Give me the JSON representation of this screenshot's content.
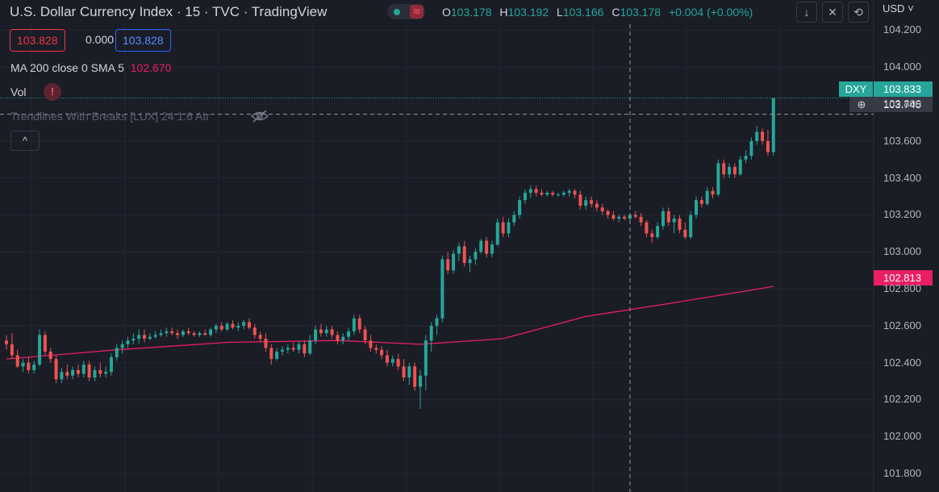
{
  "header": {
    "title": "U.S. Dollar Currency Index · 15 · TVC · TradingView",
    "ohlc": [
      {
        "key": "O",
        "value": "103.178"
      },
      {
        "key": "H",
        "value": "103.192"
      },
      {
        "key": "L",
        "value": "103.166"
      },
      {
        "key": "C",
        "value": "103.178"
      }
    ],
    "change": "+0.004 (+0.00%)",
    "currency": "USD"
  },
  "trade": {
    "sell": "103.828",
    "spread": "0.000",
    "buy": "103.828"
  },
  "indicators": {
    "ma_label": "MA 200 close 0 SMA 5",
    "ma_value": "102.670",
    "vol_label": "Vol",
    "vol_warning": "!",
    "trendlines_label": "Trendlines With Breaks [LUX] 24 1.6 Atr"
  },
  "price_scale": {
    "ticks": [
      "104.200",
      "104.000",
      "103.800",
      "103.600",
      "103.400",
      "103.200",
      "103.000",
      "102.800",
      "102.600",
      "102.400",
      "102.200",
      "102.000",
      "101.800"
    ]
  },
  "labels": {
    "symbol": "DXY",
    "last_price": "103.833",
    "crosshair_price": "103.745",
    "ma_price": "102.813"
  },
  "colors": {
    "background": "#1a1d26",
    "up": "#26a69a",
    "down": "#ef5350",
    "ma": "#e91e63",
    "grid": "#242732",
    "text": "#d1d4dc"
  },
  "chart_data": {
    "type": "line",
    "title": "U.S. Dollar Currency Index · 15 · TVC",
    "candles": [
      {
        "x": 0,
        "o": 102.52,
        "h": 102.55,
        "l": 102.47,
        "c": 102.5
      },
      {
        "x": 1,
        "o": 102.5,
        "h": 102.56,
        "l": 102.42,
        "c": 102.44
      },
      {
        "x": 2,
        "o": 102.44,
        "h": 102.47,
        "l": 102.37,
        "c": 102.38
      },
      {
        "x": 3,
        "o": 102.38,
        "h": 102.42,
        "l": 102.35,
        "c": 102.4
      },
      {
        "x": 4,
        "o": 102.4,
        "h": 102.43,
        "l": 102.34,
        "c": 102.36
      },
      {
        "x": 5,
        "o": 102.36,
        "h": 102.41,
        "l": 102.34,
        "c": 102.39
      },
      {
        "x": 6,
        "o": 102.39,
        "h": 102.58,
        "l": 102.38,
        "c": 102.55
      },
      {
        "x": 7,
        "o": 102.55,
        "h": 102.57,
        "l": 102.44,
        "c": 102.46
      },
      {
        "x": 8,
        "o": 102.46,
        "h": 102.48,
        "l": 102.4,
        "c": 102.42
      },
      {
        "x": 9,
        "o": 102.42,
        "h": 102.44,
        "l": 102.29,
        "c": 102.31
      },
      {
        "x": 10,
        "o": 102.31,
        "h": 102.37,
        "l": 102.29,
        "c": 102.35
      },
      {
        "x": 11,
        "o": 102.35,
        "h": 102.39,
        "l": 102.31,
        "c": 102.33
      },
      {
        "x": 12,
        "o": 102.33,
        "h": 102.38,
        "l": 102.31,
        "c": 102.36
      },
      {
        "x": 13,
        "o": 102.36,
        "h": 102.39,
        "l": 102.32,
        "c": 102.34
      },
      {
        "x": 14,
        "o": 102.34,
        "h": 102.41,
        "l": 102.32,
        "c": 102.39
      },
      {
        "x": 15,
        "o": 102.39,
        "h": 102.41,
        "l": 102.3,
        "c": 102.32
      },
      {
        "x": 16,
        "o": 102.32,
        "h": 102.38,
        "l": 102.3,
        "c": 102.36
      },
      {
        "x": 17,
        "o": 102.36,
        "h": 102.4,
        "l": 102.32,
        "c": 102.34
      },
      {
        "x": 18,
        "o": 102.34,
        "h": 102.38,
        "l": 102.32,
        "c": 102.35
      },
      {
        "x": 19,
        "o": 102.35,
        "h": 102.45,
        "l": 102.33,
        "c": 102.43
      },
      {
        "x": 20,
        "o": 102.43,
        "h": 102.5,
        "l": 102.41,
        "c": 102.48
      },
      {
        "x": 21,
        "o": 102.48,
        "h": 102.52,
        "l": 102.45,
        "c": 102.5
      },
      {
        "x": 22,
        "o": 102.5,
        "h": 102.54,
        "l": 102.48,
        "c": 102.52
      },
      {
        "x": 23,
        "o": 102.52,
        "h": 102.56,
        "l": 102.5,
        "c": 102.53
      },
      {
        "x": 24,
        "o": 102.53,
        "h": 102.58,
        "l": 102.5,
        "c": 102.55
      },
      {
        "x": 25,
        "o": 102.55,
        "h": 102.58,
        "l": 102.51,
        "c": 102.53
      },
      {
        "x": 26,
        "o": 102.53,
        "h": 102.56,
        "l": 102.52,
        "c": 102.54
      },
      {
        "x": 27,
        "o": 102.54,
        "h": 102.57,
        "l": 102.53,
        "c": 102.55
      },
      {
        "x": 28,
        "o": 102.55,
        "h": 102.58,
        "l": 102.54,
        "c": 102.56
      },
      {
        "x": 29,
        "o": 102.56,
        "h": 102.59,
        "l": 102.54,
        "c": 102.57
      },
      {
        "x": 30,
        "o": 102.57,
        "h": 102.59,
        "l": 102.55,
        "c": 102.56
      },
      {
        "x": 31,
        "o": 102.56,
        "h": 102.58,
        "l": 102.53,
        "c": 102.55
      },
      {
        "x": 32,
        "o": 102.55,
        "h": 102.58,
        "l": 102.54,
        "c": 102.57
      },
      {
        "x": 33,
        "o": 102.57,
        "h": 102.59,
        "l": 102.55,
        "c": 102.56
      },
      {
        "x": 34,
        "o": 102.56,
        "h": 102.57,
        "l": 102.54,
        "c": 102.55
      },
      {
        "x": 35,
        "o": 102.55,
        "h": 102.57,
        "l": 102.54,
        "c": 102.56
      },
      {
        "x": 36,
        "o": 102.56,
        "h": 102.58,
        "l": 102.55,
        "c": 102.55
      },
      {
        "x": 37,
        "o": 102.55,
        "h": 102.59,
        "l": 102.54,
        "c": 102.58
      },
      {
        "x": 38,
        "o": 102.58,
        "h": 102.61,
        "l": 102.56,
        "c": 102.6
      },
      {
        "x": 39,
        "o": 102.6,
        "h": 102.62,
        "l": 102.57,
        "c": 102.58
      },
      {
        "x": 40,
        "o": 102.58,
        "h": 102.62,
        "l": 102.57,
        "c": 102.61
      },
      {
        "x": 41,
        "o": 102.61,
        "h": 102.63,
        "l": 102.58,
        "c": 102.59
      },
      {
        "x": 42,
        "o": 102.59,
        "h": 102.62,
        "l": 102.57,
        "c": 102.6
      },
      {
        "x": 43,
        "o": 102.6,
        "h": 102.63,
        "l": 102.58,
        "c": 102.62
      },
      {
        "x": 44,
        "o": 102.62,
        "h": 102.64,
        "l": 102.58,
        "c": 102.59
      },
      {
        "x": 45,
        "o": 102.59,
        "h": 102.61,
        "l": 102.53,
        "c": 102.55
      },
      {
        "x": 46,
        "o": 102.55,
        "h": 102.57,
        "l": 102.51,
        "c": 102.53
      },
      {
        "x": 47,
        "o": 102.53,
        "h": 102.56,
        "l": 102.46,
        "c": 102.48
      },
      {
        "x": 48,
        "o": 102.48,
        "h": 102.5,
        "l": 102.39,
        "c": 102.42
      },
      {
        "x": 49,
        "o": 102.42,
        "h": 102.48,
        "l": 102.41,
        "c": 102.46
      },
      {
        "x": 50,
        "o": 102.46,
        "h": 102.49,
        "l": 102.44,
        "c": 102.47
      },
      {
        "x": 51,
        "o": 102.47,
        "h": 102.5,
        "l": 102.45,
        "c": 102.48
      },
      {
        "x": 52,
        "o": 102.48,
        "h": 102.51,
        "l": 102.46,
        "c": 102.47
      },
      {
        "x": 53,
        "o": 102.47,
        "h": 102.52,
        "l": 102.45,
        "c": 102.5
      },
      {
        "x": 54,
        "o": 102.5,
        "h": 102.52,
        "l": 102.43,
        "c": 102.45
      },
      {
        "x": 55,
        "o": 102.45,
        "h": 102.55,
        "l": 102.44,
        "c": 102.52
      },
      {
        "x": 56,
        "o": 102.52,
        "h": 102.6,
        "l": 102.5,
        "c": 102.58
      },
      {
        "x": 57,
        "o": 102.58,
        "h": 102.61,
        "l": 102.54,
        "c": 102.56
      },
      {
        "x": 58,
        "o": 102.56,
        "h": 102.6,
        "l": 102.54,
        "c": 102.58
      },
      {
        "x": 59,
        "o": 102.58,
        "h": 102.6,
        "l": 102.53,
        "c": 102.55
      },
      {
        "x": 60,
        "o": 102.55,
        "h": 102.57,
        "l": 102.5,
        "c": 102.52
      },
      {
        "x": 61,
        "o": 102.52,
        "h": 102.56,
        "l": 102.5,
        "c": 102.54
      },
      {
        "x": 62,
        "o": 102.54,
        "h": 102.59,
        "l": 102.52,
        "c": 102.57
      },
      {
        "x": 63,
        "o": 102.57,
        "h": 102.66,
        "l": 102.55,
        "c": 102.64
      },
      {
        "x": 64,
        "o": 102.64,
        "h": 102.66,
        "l": 102.56,
        "c": 102.58
      },
      {
        "x": 65,
        "o": 102.58,
        "h": 102.6,
        "l": 102.5,
        "c": 102.52
      },
      {
        "x": 66,
        "o": 102.52,
        "h": 102.55,
        "l": 102.46,
        "c": 102.48
      },
      {
        "x": 67,
        "o": 102.48,
        "h": 102.5,
        "l": 102.45,
        "c": 102.47
      },
      {
        "x": 68,
        "o": 102.47,
        "h": 102.49,
        "l": 102.42,
        "c": 102.44
      },
      {
        "x": 69,
        "o": 102.44,
        "h": 102.47,
        "l": 102.38,
        "c": 102.4
      },
      {
        "x": 70,
        "o": 102.4,
        "h": 102.44,
        "l": 102.38,
        "c": 102.42
      },
      {
        "x": 71,
        "o": 102.42,
        "h": 102.45,
        "l": 102.36,
        "c": 102.38
      },
      {
        "x": 72,
        "o": 102.38,
        "h": 102.42,
        "l": 102.3,
        "c": 102.32
      },
      {
        "x": 73,
        "o": 102.32,
        "h": 102.4,
        "l": 102.28,
        "c": 102.38
      },
      {
        "x": 74,
        "o": 102.38,
        "h": 102.4,
        "l": 102.25,
        "c": 102.27
      },
      {
        "x": 75,
        "o": 102.27,
        "h": 102.36,
        "l": 102.15,
        "c": 102.33
      },
      {
        "x": 76,
        "o": 102.33,
        "h": 102.55,
        "l": 102.25,
        "c": 102.52
      },
      {
        "x": 77,
        "o": 102.52,
        "h": 102.62,
        "l": 102.46,
        "c": 102.6
      },
      {
        "x": 78,
        "o": 102.6,
        "h": 102.66,
        "l": 102.55,
        "c": 102.64
      },
      {
        "x": 79,
        "o": 102.64,
        "h": 102.98,
        "l": 102.62,
        "c": 102.96
      },
      {
        "x": 80,
        "o": 102.96,
        "h": 103.0,
        "l": 102.88,
        "c": 102.9
      },
      {
        "x": 81,
        "o": 102.9,
        "h": 103.01,
        "l": 102.88,
        "c": 102.99
      },
      {
        "x": 82,
        "o": 102.99,
        "h": 103.05,
        "l": 102.95,
        "c": 103.03
      },
      {
        "x": 83,
        "o": 103.03,
        "h": 103.06,
        "l": 102.92,
        "c": 102.94
      },
      {
        "x": 84,
        "o": 102.94,
        "h": 102.98,
        "l": 102.89,
        "c": 102.96
      },
      {
        "x": 85,
        "o": 102.96,
        "h": 103.02,
        "l": 102.93,
        "c": 103.0
      },
      {
        "x": 86,
        "o": 103.0,
        "h": 103.07,
        "l": 102.99,
        "c": 103.06
      },
      {
        "x": 87,
        "o": 103.06,
        "h": 103.08,
        "l": 102.97,
        "c": 102.99
      },
      {
        "x": 88,
        "o": 102.99,
        "h": 103.06,
        "l": 102.97,
        "c": 103.04
      },
      {
        "x": 89,
        "o": 103.04,
        "h": 103.18,
        "l": 103.03,
        "c": 103.16
      },
      {
        "x": 90,
        "o": 103.16,
        "h": 103.19,
        "l": 103.08,
        "c": 103.1
      },
      {
        "x": 91,
        "o": 103.1,
        "h": 103.18,
        "l": 103.08,
        "c": 103.16
      },
      {
        "x": 92,
        "o": 103.16,
        "h": 103.22,
        "l": 103.14,
        "c": 103.2
      },
      {
        "x": 93,
        "o": 103.2,
        "h": 103.3,
        "l": 103.18,
        "c": 103.28
      },
      {
        "x": 94,
        "o": 103.28,
        "h": 103.34,
        "l": 103.26,
        "c": 103.32
      },
      {
        "x": 95,
        "o": 103.32,
        "h": 103.36,
        "l": 103.29,
        "c": 103.34
      },
      {
        "x": 96,
        "o": 103.34,
        "h": 103.36,
        "l": 103.3,
        "c": 103.32
      },
      {
        "x": 97,
        "o": 103.32,
        "h": 103.34,
        "l": 103.3,
        "c": 103.31
      },
      {
        "x": 98,
        "o": 103.31,
        "h": 103.33,
        "l": 103.3,
        "c": 103.32
      },
      {
        "x": 99,
        "o": 103.32,
        "h": 103.33,
        "l": 103.3,
        "c": 103.31
      },
      {
        "x": 100,
        "o": 103.31,
        "h": 103.32,
        "l": 103.3,
        "c": 103.31
      },
      {
        "x": 101,
        "o": 103.31,
        "h": 103.33,
        "l": 103.3,
        "c": 103.32
      },
      {
        "x": 102,
        "o": 103.32,
        "h": 103.34,
        "l": 103.3,
        "c": 103.33
      },
      {
        "x": 103,
        "o": 103.33,
        "h": 103.34,
        "l": 103.29,
        "c": 103.31
      },
      {
        "x": 104,
        "o": 103.31,
        "h": 103.33,
        "l": 103.23,
        "c": 103.25
      },
      {
        "x": 105,
        "o": 103.25,
        "h": 103.3,
        "l": 103.23,
        "c": 103.28
      },
      {
        "x": 106,
        "o": 103.28,
        "h": 103.3,
        "l": 103.24,
        "c": 103.26
      },
      {
        "x": 107,
        "o": 103.26,
        "h": 103.28,
        "l": 103.22,
        "c": 103.24
      },
      {
        "x": 108,
        "o": 103.24,
        "h": 103.26,
        "l": 103.2,
        "c": 103.22
      },
      {
        "x": 109,
        "o": 103.22,
        "h": 103.23,
        "l": 103.18,
        "c": 103.2
      },
      {
        "x": 110,
        "o": 103.2,
        "h": 103.22,
        "l": 103.17,
        "c": 103.18
      },
      {
        "x": 111,
        "o": 103.18,
        "h": 103.2,
        "l": 103.16,
        "c": 103.19
      },
      {
        "x": 112,
        "o": 103.19,
        "h": 103.2,
        "l": 103.17,
        "c": 103.18
      },
      {
        "x": 113,
        "o": 103.18,
        "h": 103.21,
        "l": 103.17,
        "c": 103.2
      },
      {
        "x": 114,
        "o": 103.2,
        "h": 103.22,
        "l": 103.18,
        "c": 103.19
      },
      {
        "x": 115,
        "o": 103.19,
        "h": 103.21,
        "l": 103.14,
        "c": 103.16
      },
      {
        "x": 116,
        "o": 103.16,
        "h": 103.17,
        "l": 103.08,
        "c": 103.1
      },
      {
        "x": 117,
        "o": 103.1,
        "h": 103.12,
        "l": 103.05,
        "c": 103.08
      },
      {
        "x": 118,
        "o": 103.08,
        "h": 103.16,
        "l": 103.07,
        "c": 103.14
      },
      {
        "x": 119,
        "o": 103.14,
        "h": 103.24,
        "l": 103.12,
        "c": 103.22
      },
      {
        "x": 120,
        "o": 103.22,
        "h": 103.24,
        "l": 103.14,
        "c": 103.16
      },
      {
        "x": 121,
        "o": 103.16,
        "h": 103.2,
        "l": 103.1,
        "c": 103.18
      },
      {
        "x": 122,
        "o": 103.18,
        "h": 103.2,
        "l": 103.1,
        "c": 103.12
      },
      {
        "x": 123,
        "o": 103.12,
        "h": 103.16,
        "l": 103.07,
        "c": 103.08
      },
      {
        "x": 124,
        "o": 103.08,
        "h": 103.22,
        "l": 103.07,
        "c": 103.2
      },
      {
        "x": 125,
        "o": 103.2,
        "h": 103.3,
        "l": 103.18,
        "c": 103.28
      },
      {
        "x": 126,
        "o": 103.28,
        "h": 103.3,
        "l": 103.24,
        "c": 103.26
      },
      {
        "x": 127,
        "o": 103.26,
        "h": 103.35,
        "l": 103.25,
        "c": 103.33
      },
      {
        "x": 128,
        "o": 103.33,
        "h": 103.35,
        "l": 103.29,
        "c": 103.31
      },
      {
        "x": 129,
        "o": 103.31,
        "h": 103.5,
        "l": 103.3,
        "c": 103.48
      },
      {
        "x": 130,
        "o": 103.48,
        "h": 103.5,
        "l": 103.4,
        "c": 103.42
      },
      {
        "x": 131,
        "o": 103.42,
        "h": 103.48,
        "l": 103.4,
        "c": 103.46
      },
      {
        "x": 132,
        "o": 103.46,
        "h": 103.48,
        "l": 103.4,
        "c": 103.42
      },
      {
        "x": 133,
        "o": 103.42,
        "h": 103.52,
        "l": 103.41,
        "c": 103.5
      },
      {
        "x": 134,
        "o": 103.5,
        "h": 103.55,
        "l": 103.48,
        "c": 103.52
      },
      {
        "x": 135,
        "o": 103.52,
        "h": 103.62,
        "l": 103.5,
        "c": 103.6
      },
      {
        "x": 136,
        "o": 103.6,
        "h": 103.68,
        "l": 103.58,
        "c": 103.65
      },
      {
        "x": 137,
        "o": 103.65,
        "h": 103.67,
        "l": 103.58,
        "c": 103.6
      },
      {
        "x": 138,
        "o": 103.6,
        "h": 103.66,
        "l": 103.52,
        "c": 103.54
      },
      {
        "x": 139,
        "o": 103.54,
        "h": 103.833,
        "l": 103.52,
        "c": 103.833
      }
    ],
    "ma": [
      {
        "x": 0,
        "y": 102.42
      },
      {
        "x": 20,
        "y": 102.47
      },
      {
        "x": 40,
        "y": 102.51
      },
      {
        "x": 60,
        "y": 102.52
      },
      {
        "x": 75,
        "y": 102.5
      },
      {
        "x": 90,
        "y": 102.53
      },
      {
        "x": 105,
        "y": 102.65
      },
      {
        "x": 120,
        "y": 102.72
      },
      {
        "x": 139,
        "y": 102.813
      }
    ],
    "ylim": [
      101.7,
      104.25
    ],
    "crosshair": {
      "x": 113,
      "y": 103.745
    }
  }
}
